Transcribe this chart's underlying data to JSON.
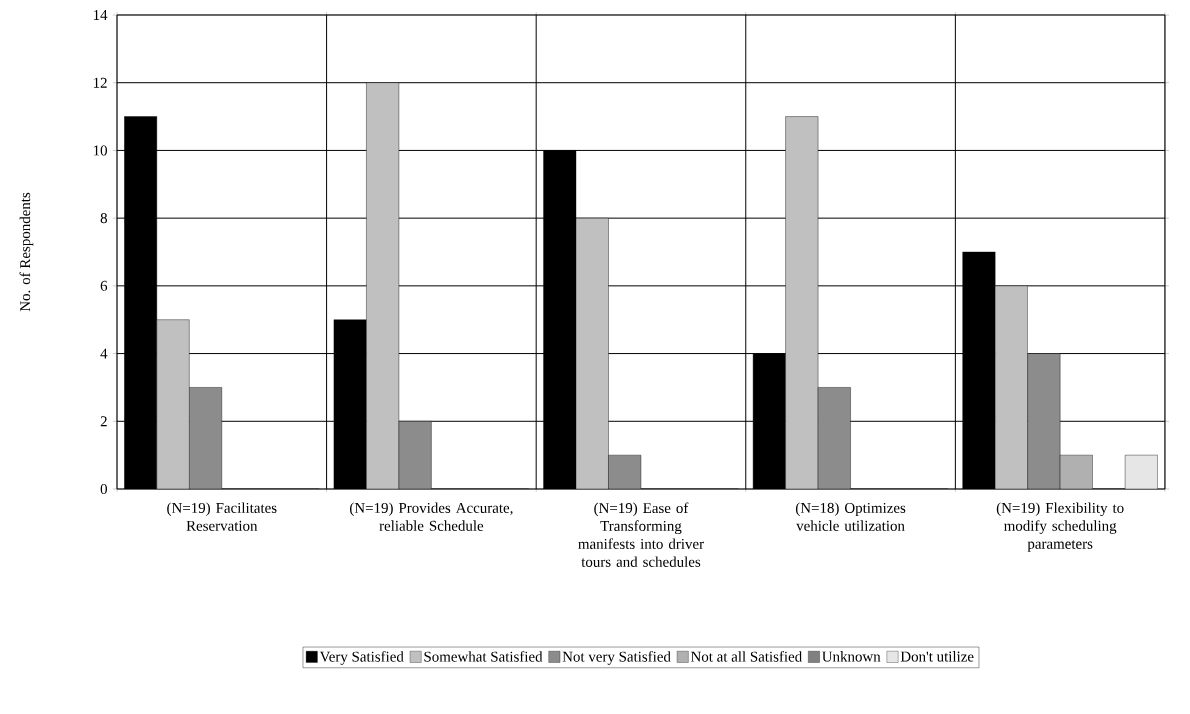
{
  "chart_data": {
    "type": "bar",
    "ylabel": "No. of Respondents",
    "categories": [
      "(N=19) Facilitates Reservation",
      "(N=19) Provides Accurate, reliable Schedule",
      "(N=19) Ease of Transforming manifests into driver tours and schedules",
      "(N=18) Optimizes vehicle utilization",
      "(N=19) Flexibility to modify scheduling parameters"
    ],
    "series": [
      {
        "name": "Very Satisfied",
        "color": "#000000",
        "values": [
          11,
          5,
          10,
          4,
          7
        ]
      },
      {
        "name": "Somewhat Satisfied",
        "color": "#c0c0c0",
        "values": [
          5,
          12,
          8,
          11,
          6
        ]
      },
      {
        "name": "Not very Satisfied",
        "color": "#8c8c8c",
        "values": [
          3,
          2,
          1,
          3,
          4
        ]
      },
      {
        "name": "Not at all Satisfied",
        "color": "#b0b0b0",
        "values": [
          0,
          0,
          0,
          0,
          1
        ]
      },
      {
        "name": "Unknown",
        "color": "#808080",
        "values": [
          0,
          0,
          0,
          0,
          0
        ]
      },
      {
        "name": "Don't utilize",
        "color": "#e6e6e6",
        "values": [
          0,
          0,
          0,
          0,
          1
        ]
      }
    ],
    "ylim": [
      0,
      14
    ],
    "yticks": [
      0,
      2,
      4,
      6,
      8,
      10,
      12,
      14
    ],
    "grid": true,
    "legend": "bottom"
  }
}
